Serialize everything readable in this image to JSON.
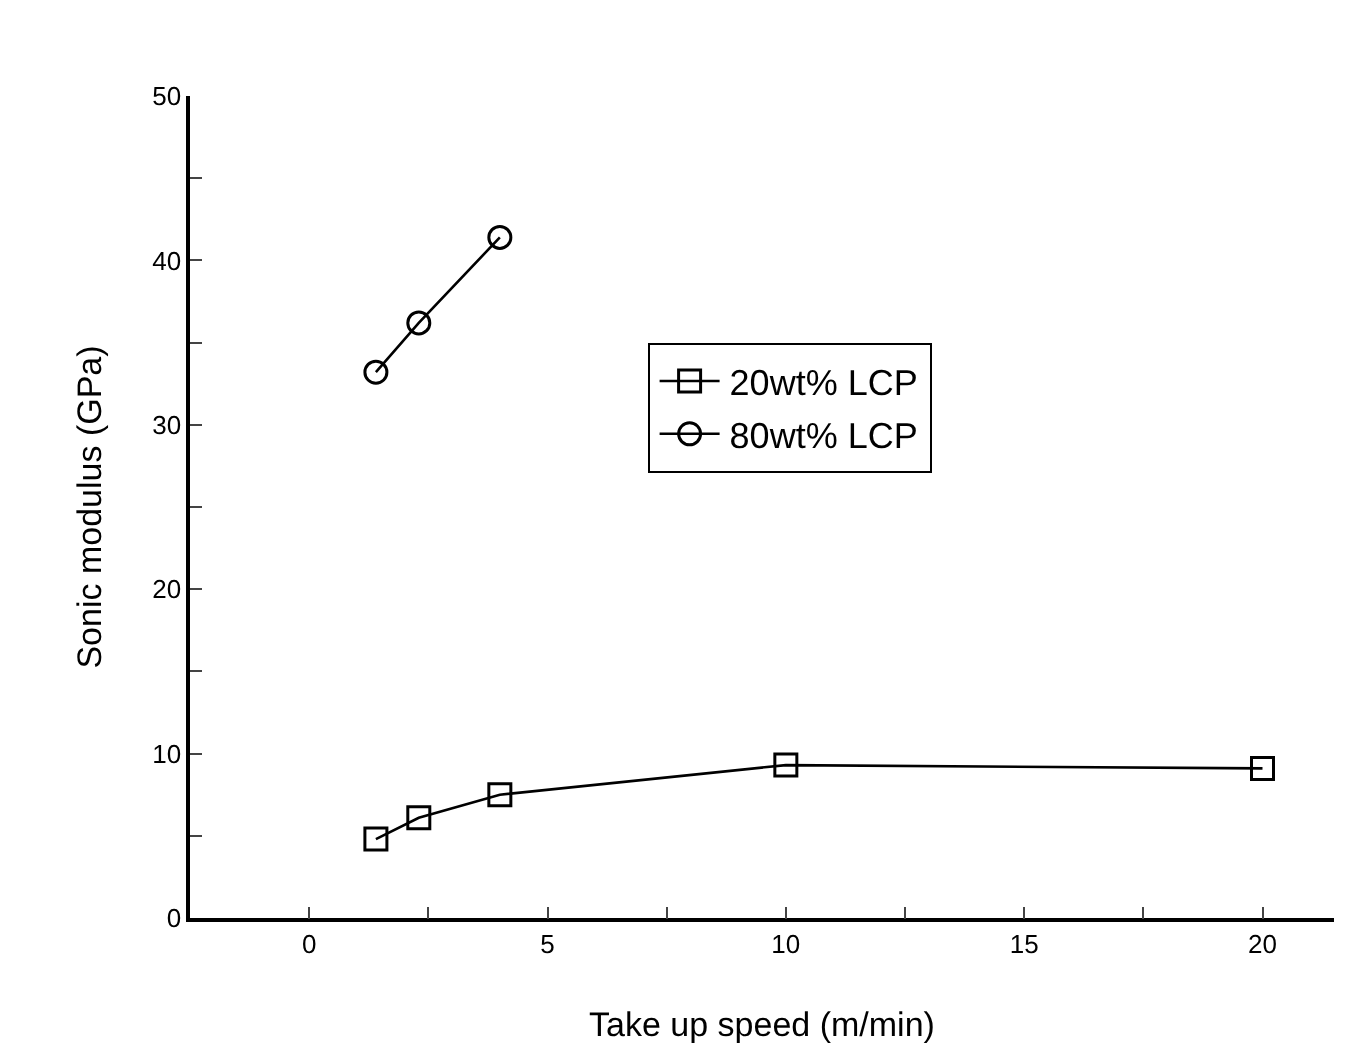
{
  "chart_data": {
    "type": "line",
    "xlabel": "Take up speed (m/min)",
    "ylabel": "Sonic modulus (GPa)",
    "xlim": [
      -2.5,
      21.5
    ],
    "ylim": [
      0,
      50
    ],
    "xticks": [
      0,
      {
        "value": 2.5,
        "label": null
      },
      5,
      {
        "value": 7.5,
        "label": null
      },
      10,
      {
        "value": 12.5,
        "label": null
      },
      15,
      {
        "value": 17.5,
        "label": null
      },
      20
    ],
    "yticks": [
      0,
      {
        "value": 5,
        "label": null
      },
      10,
      {
        "value": 15,
        "label": null
      },
      20,
      {
        "value": 25,
        "label": null
      },
      30,
      {
        "value": 35,
        "label": null
      },
      40,
      {
        "value": 45,
        "label": null
      },
      50
    ],
    "series": [
      {
        "name": "20wt% LCP",
        "color": "#000000",
        "marker": "square",
        "x": [
          1.4,
          2.3,
          4,
          10,
          20
        ],
        "values": [
          4.8,
          6.1,
          7.5,
          9.3,
          9.1
        ]
      },
      {
        "name": "80wt% LCP",
        "color": "#000000",
        "marker": "circle",
        "x": [
          1.4,
          2.3,
          4
        ],
        "values": [
          33.2,
          36.2,
          41.4
        ]
      }
    ],
    "grid": false,
    "legend": "right",
    "line_style": "solid"
  }
}
